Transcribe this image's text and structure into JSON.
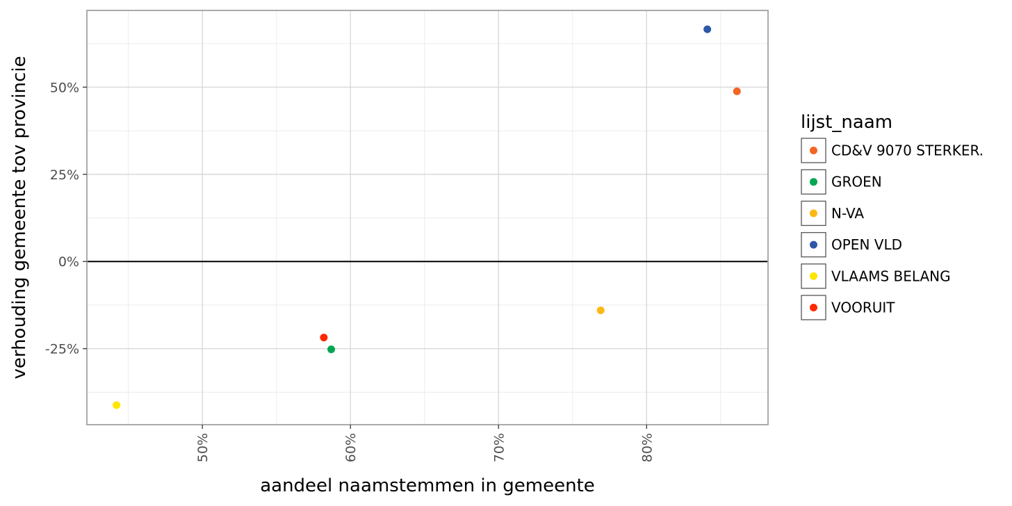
{
  "chart_data": {
    "type": "scatter",
    "xlabel": "aandeel naamstemmen in gemeente",
    "ylabel": "verhouding gemeente tov provincie",
    "xlim": [
      0.422,
      0.882
    ],
    "ylim": [
      -0.468,
      0.72
    ],
    "x_ticks": [
      0.5,
      0.6,
      0.7,
      0.8
    ],
    "x_tick_labels": [
      "50%",
      "60%",
      "70%",
      "80%"
    ],
    "x_minor_ticks": [
      0.45,
      0.55,
      0.65,
      0.75,
      0.85
    ],
    "y_ticks": [
      -0.25,
      0.0,
      0.25,
      0.5
    ],
    "y_tick_labels": [
      "-25%",
      "0%",
      "25%",
      "50%"
    ],
    "y_minor_ticks": [
      -0.375,
      -0.125,
      0.125,
      0.375,
      0.625
    ],
    "hline": 0,
    "grid": true,
    "legend": {
      "title": "lijst_naam",
      "position": "right"
    },
    "series": [
      {
        "name": "CD&V 9070 STERKER.",
        "color": "#F26522",
        "points": [
          {
            "x": 0.861,
            "y": 0.488
          }
        ]
      },
      {
        "name": "GROEN",
        "color": "#00A651",
        "points": [
          {
            "x": 0.587,
            "y": -0.252
          }
        ]
      },
      {
        "name": "N-VA",
        "color": "#FDB913",
        "points": [
          {
            "x": 0.769,
            "y": -0.14
          }
        ]
      },
      {
        "name": "OPEN VLD",
        "color": "#2E58A6",
        "points": [
          {
            "x": 0.841,
            "y": 0.666
          }
        ]
      },
      {
        "name": "VLAAMS BELANG",
        "color": "#FFE500",
        "points": [
          {
            "x": 0.442,
            "y": -0.412
          }
        ]
      },
      {
        "name": "VOORUIT",
        "color": "#FF2900",
        "points": [
          {
            "x": 0.582,
            "y": -0.218
          }
        ]
      }
    ]
  }
}
